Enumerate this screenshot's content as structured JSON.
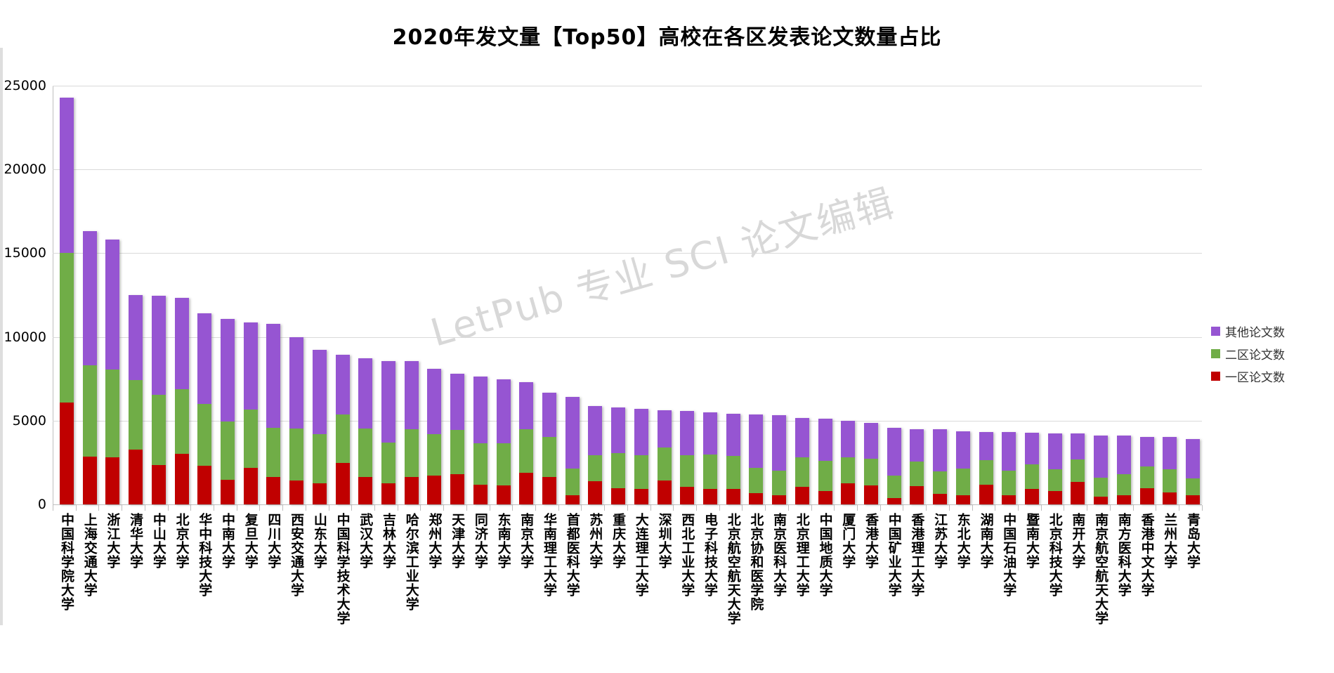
{
  "title": "2020年发文量【Top50】高校在各区发表论文数量占比",
  "watermark": "LetPub 专业 SCI 论文编辑",
  "legend": [
    {
      "label": "其他论文数",
      "color": "#9655d2"
    },
    {
      "label": "二区论文数",
      "color": "#70ad47"
    },
    {
      "label": "一区论文数",
      "color": "#c00000"
    }
  ],
  "colors": {
    "zone1_red": "#c00000",
    "zone2_green": "#70ad47",
    "other_purple": "#9655d2",
    "gridline": "#d9d9d9",
    "axis": "#bfbfbf",
    "watermark_grey": "#d8d8d8"
  },
  "chart_data": {
    "type": "bar",
    "stacked": true,
    "title": "2020年发文量【Top50】高校在各区发表论文数量占比",
    "xlabel": "",
    "ylabel": "",
    "ylim": [
      0,
      25000
    ],
    "y_ticks": [
      0,
      5000,
      10000,
      15000,
      20000,
      25000
    ],
    "grid": true,
    "legend_position": "right",
    "categories": [
      "中国科学院大学",
      "上海交通大学",
      "浙江大学",
      "清华大学",
      "中山大学",
      "北京大学",
      "华中科技大学",
      "中南大学",
      "复旦大学",
      "四川大学",
      "西安交通大学",
      "山东大学",
      "中国科学技术大学",
      "武汉大学",
      "吉林大学",
      "哈尔滨工业大学",
      "郑州大学",
      "天津大学",
      "同济大学",
      "东南大学",
      "南京大学",
      "华南理工大学",
      "首都医科大学",
      "苏州大学",
      "重庆大学",
      "大连理工大学",
      "深圳大学",
      "西北工业大学",
      "电子科技大学",
      "北京航空航天大学",
      "北京协和医学院",
      "南京医科大学",
      "北京理工大学",
      "中国地质大学",
      "厦门大学",
      "香港大学",
      "中国矿业大学",
      "香港理工大学",
      "江苏大学",
      "东北大学",
      "湖南大学",
      "中国石油大学",
      "暨南大学",
      "北京科技大学",
      "南开大学",
      "南京航空航天大学",
      "南方医科大学",
      "香港中文大学",
      "兰州大学",
      "青岛大学"
    ],
    "series": [
      {
        "name": "一区论文数",
        "color": "#c00000",
        "values": [
          6100,
          2840,
          2800,
          3290,
          2350,
          3010,
          2310,
          1470,
          2170,
          1640,
          1430,
          1280,
          2490,
          1650,
          1260,
          1640,
          1710,
          1820,
          1190,
          1120,
          1890,
          1650,
          560,
          1370,
          980,
          940,
          1440,
          1050,
          910,
          910,
          660,
          560,
          1050,
          800,
          1260,
          1120,
          390,
          1080,
          640,
          530,
          1170,
          560,
          920,
          780,
          1330,
          470,
          530,
          980,
          710,
          560
        ]
      },
      {
        "name": "二区论文数",
        "color": "#70ad47",
        "values": [
          8900,
          5460,
          5250,
          4130,
          4190,
          3850,
          3710,
          3500,
          3500,
          2950,
          3120,
          2920,
          2860,
          2900,
          2450,
          2870,
          2490,
          2620,
          2480,
          2520,
          2590,
          2380,
          1580,
          1570,
          2100,
          2000,
          1950,
          1890,
          2060,
          2000,
          1510,
          1470,
          1780,
          1790,
          1570,
          1610,
          1320,
          1470,
          1320,
          1600,
          1460,
          1470,
          1460,
          1320,
          1360,
          1140,
          1290,
          1290,
          1390,
          1010
        ]
      },
      {
        "name": "其他论文数",
        "color": "#9655d2",
        "values": [
          9300,
          8000,
          7750,
          5080,
          5920,
          5460,
          5390,
          6130,
          5180,
          6210,
          5420,
          5040,
          3570,
          4200,
          4860,
          4060,
          3880,
          3360,
          3960,
          3820,
          2830,
          2660,
          4260,
          2940,
          2690,
          2760,
          2240,
          2620,
          2520,
          2510,
          3220,
          3290,
          2320,
          2520,
          2170,
          2130,
          2880,
          1930,
          2520,
          2240,
          1710,
          2310,
          1890,
          2130,
          1540,
          2520,
          2310,
          1760,
          1930,
          2350
        ]
      }
    ]
  }
}
